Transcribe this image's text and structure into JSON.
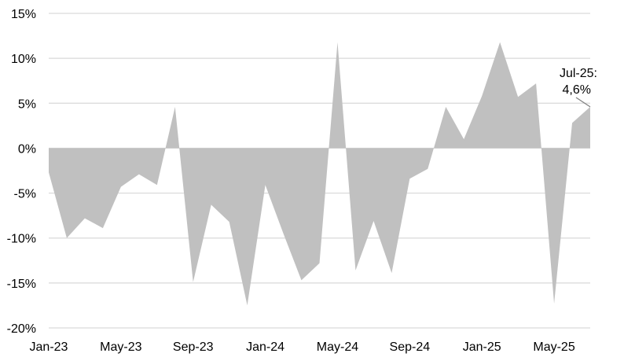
{
  "chart_data": {
    "type": "area",
    "title": "",
    "xlabel": "",
    "ylabel": "",
    "x": [
      "Jan-23",
      "Feb-23",
      "Mar-23",
      "Apr-23",
      "May-23",
      "Jun-23",
      "Jul-23",
      "Aug-23",
      "Sep-23",
      "Oct-23",
      "Nov-23",
      "Dec-23",
      "Jan-24",
      "Feb-24",
      "Mar-24",
      "Apr-24",
      "May-24",
      "Jun-24",
      "Jul-24",
      "Aug-24",
      "Sep-24",
      "Oct-24",
      "Nov-24",
      "Dec-24",
      "Jan-25",
      "Feb-25",
      "Mar-25",
      "Apr-25",
      "May-25",
      "Jun-25",
      "Jul-25"
    ],
    "values": [
      -2.7,
      -10.0,
      -7.8,
      -8.9,
      -4.3,
      -2.9,
      -4.1,
      4.6,
      -14.9,
      -6.3,
      -8.2,
      -17.5,
      -4.1,
      -9.5,
      -14.7,
      -12.8,
      11.8,
      -13.6,
      -8.1,
      -13.9,
      -3.4,
      -2.3,
      4.6,
      1.0,
      5.8,
      11.8,
      5.7,
      7.2,
      -17.3,
      2.8,
      4.6
    ],
    "ylim": [
      -20,
      15
    ],
    "y_ticks": [
      15,
      10,
      5,
      0,
      -5,
      -10,
      -15,
      -20
    ],
    "y_tick_labels": [
      "15%",
      "10%",
      "5%",
      "0%",
      "-5%",
      "-10%",
      "-15%",
      "-20%"
    ],
    "x_tick_labels": [
      "Jan-23",
      "May-23",
      "Sep-23",
      "Jan-24",
      "May-24",
      "Sep-24",
      "Jan-25",
      "May-25"
    ],
    "x_tick_indices": [
      0,
      4,
      8,
      12,
      16,
      20,
      24,
      28
    ],
    "grid": true,
    "annotation": {
      "line1": "Jul-25:",
      "line2": "4,6%",
      "point_index": 30
    },
    "colors": {
      "fill": "#c0c0c0",
      "grid": "#d9d9d9",
      "text": "#000000"
    }
  }
}
